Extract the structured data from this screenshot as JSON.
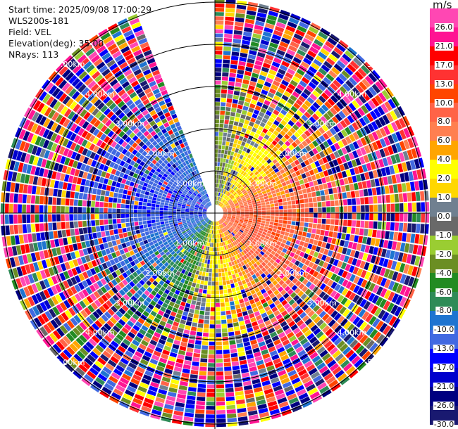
{
  "info": {
    "start_time": "Start time: 2025/09/08 17:00:29",
    "instrument": "WLS200s-181",
    "field": "Field: VEL",
    "elevation": "Elevation(deg): 35.00",
    "nrays": "NRays: 113"
  },
  "chart_data": {
    "type": "heatmap",
    "subtype": "polar PPI scan",
    "field": "VEL",
    "units": "m/s",
    "n_rays": 113,
    "azimuth_start_deg": 0,
    "azimuth_step_deg": 3,
    "n_gates": 50,
    "max_range_km": 5.08,
    "range_rings_km": [
      1,
      2,
      3,
      4,
      5
    ],
    "ring_labels": [
      "1.00km",
      "2.00km",
      "3.00km",
      "4.00km",
      "5.00km"
    ],
    "colorbar": {
      "unit_label": "m/s",
      "bounds": [
        -30,
        -26,
        -21,
        -17,
        -13,
        -10,
        -8,
        -6,
        -4,
        -2,
        -1,
        0,
        1,
        2,
        4,
        6,
        8,
        10,
        13,
        17,
        21,
        26,
        30
      ],
      "tick_labels": [
        "26.0",
        "21.0",
        "17.0",
        "13.0",
        "10.0",
        "8.0",
        "6.0",
        "4.0",
        "2.0",
        "1.0",
        "0.0",
        "-1.0",
        "-2.0",
        "-4.0",
        "-6.0",
        "-8.0",
        "-10.0",
        "-13.0",
        "-17.0",
        "-21.0",
        "-26.0",
        "-30.0"
      ],
      "colors_top_to_bottom": [
        "#ff47b3",
        "#ff1493",
        "#ff0000",
        "#ff3232",
        "#ff4500",
        "#ff6347",
        "#ff7f50",
        "#ffa500",
        "#ffff00",
        "#ffd700",
        "#708090",
        "#696969",
        "#9acd32",
        "#6b8e23",
        "#228b22",
        "#2e8b57",
        "#1e74d0",
        "#4169e1",
        "#0000ff",
        "#0000cd",
        "#000080",
        "#191970"
      ]
    }
  }
}
